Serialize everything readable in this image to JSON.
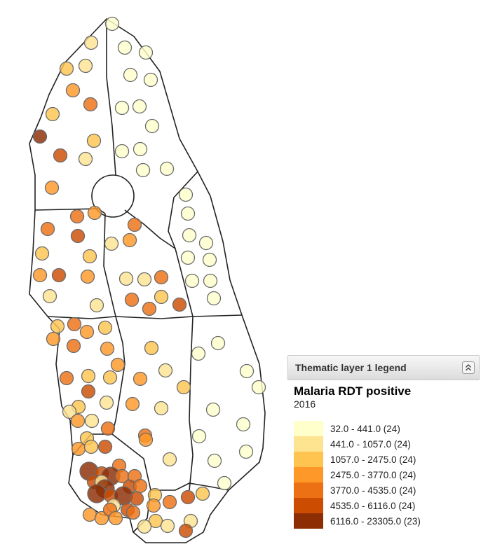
{
  "legend": {
    "header": "Thematic layer 1 legend",
    "collapse_icon": "double-chevron-up-icon",
    "title": "Malaria RDT positive",
    "period": "2016",
    "classes": [
      {
        "label": "32.0 - 441.0 (24)",
        "color": "#ffffcc"
      },
      {
        "label": "441.0 - 1057.0 (24)",
        "color": "#fee391"
      },
      {
        "label": "1057.0 - 2475.0 (24)",
        "color": "#fec44f"
      },
      {
        "label": "2475.0 - 3770.0 (24)",
        "color": "#fe9929"
      },
      {
        "label": "3770.0 - 4535.0 (24)",
        "color": "#ec7014"
      },
      {
        "label": "4535.0 - 6116.0 (24)",
        "color": "#cc4c02"
      },
      {
        "label": "6116.0 - 23305.0 (23)",
        "color": "#8c2d04"
      }
    ]
  }
}
